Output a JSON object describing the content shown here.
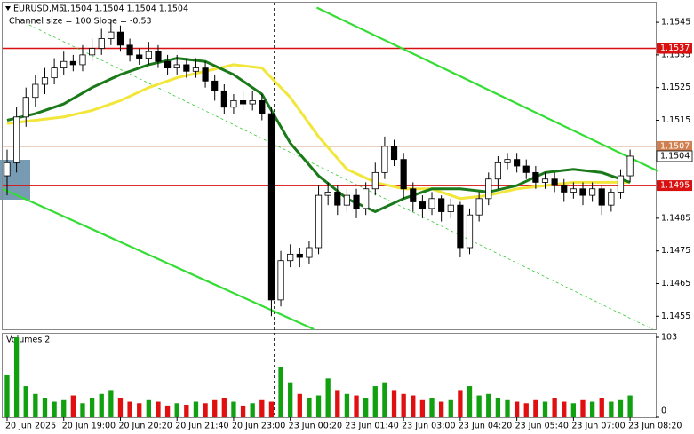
{
  "chart_data": {
    "type": "candlestick",
    "title": "EURUSD,M5",
    "ohlc_header": "1.1504 1.1504 1.1504 1.1504",
    "indicator_label": "Channel size = 100 Slope = -0.53",
    "xlim": [
      -0.47,
      68.72
    ],
    "xticks": [
      {
        "value": 0,
        "label": "20 Jun 2025"
      },
      {
        "value": 6,
        "label": "20 Jun 19:00"
      },
      {
        "value": 12,
        "label": "20 Jun 20:20"
      },
      {
        "value": 18,
        "label": "20 Jun 21:40"
      },
      {
        "value": 24,
        "label": "20 Jun 23:00"
      },
      {
        "value": 30,
        "label": "23 Jun 00:20"
      },
      {
        "value": 36,
        "label": "23 Jun 01:40"
      },
      {
        "value": 42,
        "label": "23 Jun 03:00"
      },
      {
        "value": 48,
        "label": "23 Jun 04:20"
      },
      {
        "value": 54,
        "label": "23 Jun 05:40"
      },
      {
        "value": 60,
        "label": "23 Jun 07:00"
      },
      {
        "value": 66,
        "label": "23 Jun 08:20"
      }
    ],
    "ylim": [
      1.1451,
      1.1551
    ],
    "yticks": [
      1.1455,
      1.1465,
      1.1475,
      1.1485,
      1.1515,
      1.1525,
      1.1535,
      1.1545
    ],
    "open": [
      1.1498,
      1.1502,
      1.1516,
      1.1522,
      1.1526,
      1.1528,
      1.1531,
      1.1533,
      1.1532,
      1.1535,
      1.1537,
      1.154,
      1.1542,
      1.1538,
      1.1535,
      1.1534,
      1.1536,
      1.1533,
      1.1531,
      1.1532,
      1.153,
      1.1531,
      1.1527,
      1.1524,
      1.1519,
      1.1521,
      1.152,
      1.1521,
      1.1517,
      1.146,
      1.1472,
      1.1474,
      1.1473,
      1.1476,
      1.1492,
      1.1493,
      1.1489,
      1.1492,
      1.1488,
      1.1494,
      1.1499,
      1.1507,
      1.1503,
      1.1494,
      1.149,
      1.1488,
      1.1491,
      1.1487,
      1.1489,
      1.1476,
      1.1486,
      1.1491,
      1.1497,
      1.1502,
      1.1503,
      1.1501,
      1.1499,
      1.1496,
      1.1497,
      1.1495,
      1.1493,
      1.1494,
      1.1492,
      1.1494,
      1.1489,
      1.1493,
      1.1498
    ],
    "high": [
      1.1506,
      1.1519,
      1.1525,
      1.1529,
      1.1531,
      1.1534,
      1.1536,
      1.1535,
      1.1538,
      1.154,
      1.1543,
      1.1546,
      1.1544,
      1.154,
      1.1537,
      1.1539,
      1.1538,
      1.1535,
      1.1535,
      1.1534,
      1.1534,
      1.1533,
      1.1529,
      1.1526,
      1.1523,
      1.1524,
      1.1524,
      1.1523,
      1.1519,
      1.1475,
      1.1477,
      1.1476,
      1.1478,
      1.1495,
      1.1496,
      1.1495,
      1.1494,
      1.1494,
      1.1496,
      1.1502,
      1.151,
      1.1509,
      1.1505,
      1.1496,
      1.1492,
      1.1493,
      1.1492,
      1.1491,
      1.149,
      1.1488,
      1.1493,
      1.1499,
      1.1504,
      1.1505,
      1.1505,
      1.1503,
      1.1501,
      1.1499,
      1.1499,
      1.1497,
      1.1496,
      1.1496,
      1.1496,
      1.1495,
      1.1494,
      1.15,
      1.1506
    ],
    "low": [
      1.1492,
      1.1499,
      1.1513,
      1.1519,
      1.1523,
      1.1526,
      1.1529,
      1.153,
      1.153,
      1.1533,
      1.1535,
      1.1538,
      1.1536,
      1.1533,
      1.1532,
      1.1532,
      1.1531,
      1.1529,
      1.1529,
      1.1528,
      1.1528,
      1.1525,
      1.1521,
      1.1517,
      1.1517,
      1.1518,
      1.1518,
      1.1515,
      1.1455,
      1.1458,
      1.147,
      1.147,
      1.1471,
      1.1474,
      1.1489,
      1.1486,
      1.1487,
      1.1485,
      1.1486,
      1.1492,
      1.1497,
      1.1501,
      1.1491,
      1.1487,
      1.1485,
      1.1486,
      1.1484,
      1.1485,
      1.1473,
      1.1474,
      1.1484,
      1.1489,
      1.1494,
      1.15,
      1.1499,
      1.1497,
      1.1494,
      1.1494,
      1.1493,
      1.149,
      1.1491,
      1.1489,
      1.149,
      1.1486,
      1.1487,
      1.1491,
      1.1496
    ],
    "close": [
      1.1502,
      1.1516,
      1.1522,
      1.1526,
      1.1528,
      1.1531,
      1.1533,
      1.1532,
      1.1535,
      1.1537,
      1.154,
      1.1542,
      1.1538,
      1.1535,
      1.1534,
      1.1536,
      1.1533,
      1.1531,
      1.1532,
      1.153,
      1.1531,
      1.1527,
      1.1524,
      1.1519,
      1.1521,
      1.152,
      1.1521,
      1.1517,
      1.146,
      1.1472,
      1.1474,
      1.1473,
      1.1476,
      1.1492,
      1.1493,
      1.1489,
      1.1492,
      1.1488,
      1.1494,
      1.1499,
      1.1507,
      1.1503,
      1.1494,
      1.149,
      1.1488,
      1.1491,
      1.1487,
      1.1489,
      1.1476,
      1.1486,
      1.1491,
      1.1497,
      1.1502,
      1.1503,
      1.1501,
      1.1499,
      1.1496,
      1.1497,
      1.1495,
      1.1493,
      1.1494,
      1.1492,
      1.1494,
      1.1489,
      1.1493,
      1.1498,
      1.1504
    ],
    "candle_color": "#000000",
    "moving_averages": [
      {
        "color": "#f2e63a",
        "x": [
          0,
          3,
          6,
          9,
          12,
          15,
          18,
          21,
          24,
          27,
          30,
          33,
          36,
          39,
          42,
          45,
          48,
          51,
          54,
          57,
          60,
          63,
          66
        ],
        "values": [
          1.1514,
          1.1515,
          1.1516,
          1.1518,
          1.1521,
          1.1525,
          1.1528,
          1.153,
          1.1532,
          1.1531,
          1.1522,
          1.151,
          1.15,
          1.1496,
          1.1494,
          1.1494,
          1.1491,
          1.1492,
          1.1494,
          1.1495,
          1.1496,
          1.1496,
          1.1496
        ]
      },
      {
        "color": "#1a7a1a",
        "x": [
          0,
          3,
          6,
          9,
          12,
          15,
          18,
          21,
          24,
          27,
          30,
          33,
          36,
          39,
          42,
          45,
          48,
          51,
          54,
          57,
          60,
          63,
          66
        ],
        "values": [
          1.1515,
          1.1517,
          1.152,
          1.1525,
          1.1529,
          1.1532,
          1.1534,
          1.1533,
          1.1529,
          1.1523,
          1.1508,
          1.1498,
          1.1491,
          1.1487,
          1.1491,
          1.1494,
          1.1494,
          1.1493,
          1.1495,
          1.1499,
          1.15,
          1.1499,
          1.1496
        ]
      }
    ],
    "trendlines": [
      {
        "x": [
          32.8,
          68.9
        ],
        "y": [
          1.15495,
          1.14995
        ],
        "color": "#33dd33",
        "dashed": false
      },
      {
        "x": [
          -0.47,
          32.5
        ],
        "y": [
          1.1494,
          1.1451
        ],
        "color": "#33dd33",
        "dashed": false
      },
      {
        "x": [
          2.34,
          68.4
        ],
        "y": [
          1.15442,
          1.1451
        ],
        "color": "#33cc33",
        "dashed": true
      }
    ],
    "levels": [
      {
        "value": 1.1537,
        "color": "#d81010"
      },
      {
        "value": 1.1507,
        "color": "#d08050"
      },
      {
        "value": 1.1495,
        "color": "#d81010"
      }
    ],
    "last_price": 1.1504,
    "separator_x": 28.3,
    "volume": {
      "title": "Volumes 2",
      "ylim": [
        0,
        103
      ],
      "yticks": [
        0,
        103
      ],
      "up_color": "#10a010",
      "down_color": "#e01010",
      "values": [
        55,
        103,
        40,
        30,
        25,
        20,
        22,
        28,
        18,
        25,
        30,
        35,
        24,
        20,
        18,
        22,
        20,
        15,
        18,
        16,
        20,
        18,
        22,
        25,
        20,
        15,
        18,
        22,
        20,
        65,
        45,
        30,
        25,
        28,
        50,
        35,
        30,
        28,
        25,
        40,
        45,
        35,
        30,
        28,
        22,
        25,
        20,
        22,
        35,
        40,
        28,
        30,
        25,
        22,
        20,
        18,
        22,
        20,
        25,
        20,
        18,
        22,
        20,
        25,
        20,
        22,
        28
      ]
    }
  }
}
